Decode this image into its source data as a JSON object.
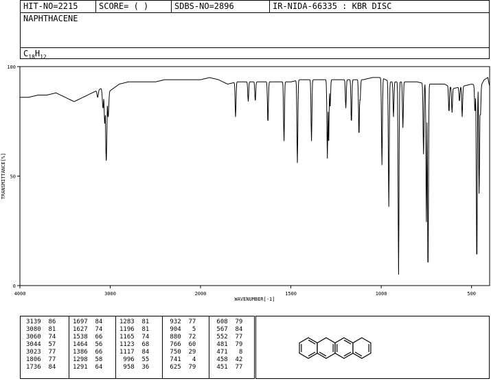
{
  "header": {
    "hit_no": "HIT-NO=2215",
    "score": "SCORE=  (   )",
    "sdbs_no": "SDBS-NO=2896",
    "ir": "IR-NIDA-66335 : KBR DISC",
    "compound": "NAPHTHACENE",
    "formula_c": "C",
    "formula_c_sub": "18",
    "formula_h": "H",
    "formula_h_sub": "12"
  },
  "chart_data": {
    "type": "line",
    "xlabel": "WAVENUMBER[-1]",
    "ylabel": "TRANSMITTANCE[%]",
    "xlim": [
      4000,
      400
    ],
    "ylim": [
      0,
      100
    ],
    "x_ticks": [
      "4000",
      "3000",
      "2000",
      "1500",
      "1000",
      "500"
    ],
    "y_ticks": [
      "100",
      "50",
      "0"
    ],
    "line_color": "#000000",
    "baseline": [
      [
        4000,
        86
      ],
      [
        3900,
        86
      ],
      [
        3800,
        87
      ],
      [
        3700,
        87
      ],
      [
        3600,
        88
      ],
      [
        3500,
        86
      ],
      [
        3450,
        85
      ],
      [
        3400,
        84
      ],
      [
        3350,
        85
      ],
      [
        3300,
        86
      ],
      [
        3250,
        87
      ],
      [
        3200,
        88
      ],
      [
        3150,
        89
      ],
      [
        3100,
        90
      ],
      [
        3000,
        89
      ],
      [
        2900,
        92
      ],
      [
        2800,
        93
      ],
      [
        2700,
        93
      ],
      [
        2600,
        93
      ],
      [
        2500,
        93
      ],
      [
        2400,
        94
      ],
      [
        2300,
        94
      ],
      [
        2200,
        94
      ],
      [
        2100,
        94
      ],
      [
        2000,
        94
      ],
      [
        1950,
        95
      ],
      [
        1900,
        94
      ],
      [
        1850,
        92
      ],
      [
        1800,
        93
      ],
      [
        1750,
        93
      ],
      [
        1700,
        93
      ],
      [
        1650,
        93
      ],
      [
        1600,
        93
      ],
      [
        1550,
        93
      ],
      [
        1500,
        93
      ],
      [
        1450,
        94
      ],
      [
        1400,
        94
      ],
      [
        1350,
        94
      ],
      [
        1300,
        94
      ],
      [
        1250,
        94
      ],
      [
        1200,
        94
      ],
      [
        1150,
        94
      ],
      [
        1100,
        94
      ],
      [
        1050,
        95
      ],
      [
        1000,
        95
      ],
      [
        950,
        93
      ],
      [
        900,
        93
      ],
      [
        850,
        93
      ],
      [
        800,
        93
      ],
      [
        750,
        92
      ],
      [
        700,
        92
      ],
      [
        650,
        92
      ],
      [
        600,
        90
      ],
      [
        550,
        91
      ],
      [
        500,
        92
      ],
      [
        450,
        91
      ],
      [
        430,
        94
      ],
      [
        410,
        95
      ],
      [
        400,
        91
      ]
    ],
    "peaks": [
      {
        "x": 3139,
        "y": 86
      },
      {
        "x": 3080,
        "y": 81
      },
      {
        "x": 3060,
        "y": 74
      },
      {
        "x": 3044,
        "y": 57
      },
      {
        "x": 3023,
        "y": 77
      },
      {
        "x": 1806,
        "y": 77
      },
      {
        "x": 1736,
        "y": 84
      },
      {
        "x": 1697,
        "y": 84
      },
      {
        "x": 1627,
        "y": 74
      },
      {
        "x": 1538,
        "y": 66
      },
      {
        "x": 1464,
        "y": 56
      },
      {
        "x": 1386,
        "y": 66
      },
      {
        "x": 1298,
        "y": 58
      },
      {
        "x": 1291,
        "y": 64
      },
      {
        "x": 1283,
        "y": 81
      },
      {
        "x": 1196,
        "y": 81
      },
      {
        "x": 1165,
        "y": 74
      },
      {
        "x": 1123,
        "y": 68
      },
      {
        "x": 1117,
        "y": 84
      },
      {
        "x": 996,
        "y": 55
      },
      {
        "x": 958,
        "y": 36
      },
      {
        "x": 932,
        "y": 77
      },
      {
        "x": 904,
        "y": 5
      },
      {
        "x": 880,
        "y": 72
      },
      {
        "x": 766,
        "y": 60
      },
      {
        "x": 750,
        "y": 29
      },
      {
        "x": 741,
        "y": 4
      },
      {
        "x": 625,
        "y": 79
      },
      {
        "x": 608,
        "y": 79
      },
      {
        "x": 567,
        "y": 84
      },
      {
        "x": 552,
        "y": 77
      },
      {
        "x": 481,
        "y": 79
      },
      {
        "x": 471,
        "y": 8
      },
      {
        "x": 458,
        "y": 42
      },
      {
        "x": 451,
        "y": 77
      }
    ]
  },
  "peak_table_columns": [
    [
      "3139  86",
      "3080  81",
      "3060  74",
      "3044  57",
      "3023  77",
      "1806  77",
      "1736  84"
    ],
    [
      "1697  84",
      "1627  74",
      "1538  66",
      "1464  56",
      "1386  66",
      "1298  58",
      "1291  64"
    ],
    [
      "1283  81",
      "1196  81",
      "1165  74",
      "1123  68",
      "1117  84",
      " 996  55",
      " 958  36"
    ],
    [
      " 932  77",
      " 904   5",
      " 880  72",
      " 766  60",
      " 750  29",
      " 741   4",
      " 625  79"
    ],
    [
      " 608  79",
      " 567  84",
      " 552  77",
      " 481  79",
      " 471   8",
      " 458  42",
      " 451  77"
    ]
  ],
  "structure": {
    "name": "naphthacene-structure",
    "rings": 4
  }
}
